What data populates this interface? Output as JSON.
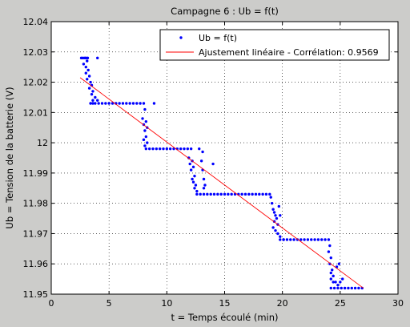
{
  "window": {
    "background": "#ccccca"
  },
  "chart_data": {
    "type": "scatter",
    "title": "Campagne 6 : Ub = f(t)",
    "xlabel": "t = Temps écoulé (min)",
    "ylabel": "Ub = Tension de la batterie (V)",
    "xlim": [
      0,
      30
    ],
    "ylim": [
      11.95,
      12.04
    ],
    "xticks": [
      0,
      5,
      10,
      15,
      20,
      25,
      30
    ],
    "xtick_labels": [
      "0",
      "5",
      "10",
      "15",
      "20",
      "25",
      "30"
    ],
    "yticks": [
      11.95,
      11.96,
      11.97,
      11.98,
      11.99,
      12.0,
      12.01,
      12.02,
      12.03,
      12.04
    ],
    "ytick_labels": [
      "11.95",
      "11.96",
      "11.97",
      "11.98",
      "11.99",
      "12",
      "12.01",
      "12.02",
      "12.03",
      "12.04"
    ],
    "grid": true,
    "legend": {
      "position": "top-right",
      "entries": [
        "Ub = f(t)",
        "Ajustement linéaire - Corrélation: 0.9569"
      ]
    },
    "series": [
      {
        "name": "Ub = f(t)",
        "kind": "scatter",
        "color": "#0000ff",
        "points": [
          [
            2.6,
            12.028
          ],
          [
            2.75,
            12.028
          ],
          [
            2.9,
            12.028
          ],
          [
            3.0,
            12.028
          ],
          [
            3.1,
            12.027
          ],
          [
            3.15,
            12.028
          ],
          [
            4.0,
            12.028
          ],
          [
            2.8,
            12.026
          ],
          [
            3.0,
            12.025
          ],
          [
            3.2,
            12.024
          ],
          [
            3.0,
            12.023
          ],
          [
            3.3,
            12.022
          ],
          [
            3.1,
            12.021
          ],
          [
            3.4,
            12.02
          ],
          [
            3.5,
            12.019
          ],
          [
            3.3,
            12.018
          ],
          [
            3.6,
            12.017
          ],
          [
            3.5,
            12.016
          ],
          [
            3.8,
            12.015
          ],
          [
            3.6,
            12.014
          ],
          [
            4.0,
            12.014
          ],
          [
            3.4,
            12.013
          ],
          [
            3.6,
            12.013
          ],
          [
            3.8,
            12.013
          ],
          [
            4.1,
            12.013
          ],
          [
            4.4,
            12.013
          ],
          [
            4.7,
            12.013
          ],
          [
            5.0,
            12.013
          ],
          [
            5.3,
            12.013
          ],
          [
            5.6,
            12.013
          ],
          [
            5.9,
            12.013
          ],
          [
            6.2,
            12.013
          ],
          [
            6.5,
            12.013
          ],
          [
            6.8,
            12.013
          ],
          [
            7.1,
            12.013
          ],
          [
            7.4,
            12.013
          ],
          [
            7.7,
            12.013
          ],
          [
            8.0,
            12.013
          ],
          [
            8.9,
            12.013
          ],
          [
            8.1,
            12.011
          ],
          [
            7.9,
            12.008
          ],
          [
            8.2,
            12.007
          ],
          [
            8.0,
            12.006
          ],
          [
            8.3,
            12.005
          ],
          [
            8.1,
            12.004
          ],
          [
            8.2,
            12.002
          ],
          [
            8.0,
            12.001
          ],
          [
            8.3,
            12.0
          ],
          [
            8.1,
            11.999
          ],
          [
            8.2,
            11.998
          ],
          [
            8.5,
            11.998
          ],
          [
            8.8,
            11.998
          ],
          [
            9.1,
            11.998
          ],
          [
            9.4,
            11.998
          ],
          [
            9.7,
            11.998
          ],
          [
            10.0,
            11.998
          ],
          [
            10.3,
            11.998
          ],
          [
            10.6,
            11.998
          ],
          [
            10.9,
            11.998
          ],
          [
            11.2,
            11.998
          ],
          [
            11.5,
            11.998
          ],
          [
            11.8,
            11.998
          ],
          [
            12.1,
            11.998
          ],
          [
            12.8,
            11.998
          ],
          [
            13.1,
            11.997
          ],
          [
            11.9,
            11.995
          ],
          [
            12.2,
            11.994
          ],
          [
            12.0,
            11.993
          ],
          [
            12.3,
            11.992
          ],
          [
            12.1,
            11.991
          ],
          [
            12.4,
            11.989
          ],
          [
            12.2,
            11.988
          ],
          [
            12.3,
            11.987
          ],
          [
            12.5,
            11.986
          ],
          [
            12.4,
            11.985
          ],
          [
            12.6,
            11.984
          ],
          [
            13.0,
            11.994
          ],
          [
            13.1,
            11.991
          ],
          [
            13.2,
            11.988
          ],
          [
            13.3,
            11.986
          ],
          [
            13.2,
            11.985
          ],
          [
            14.0,
            11.993
          ],
          [
            12.6,
            11.983
          ],
          [
            12.9,
            11.983
          ],
          [
            13.2,
            11.983
          ],
          [
            13.5,
            11.983
          ],
          [
            13.8,
            11.983
          ],
          [
            14.1,
            11.983
          ],
          [
            14.4,
            11.983
          ],
          [
            14.7,
            11.983
          ],
          [
            15.0,
            11.983
          ],
          [
            15.3,
            11.983
          ],
          [
            15.6,
            11.983
          ],
          [
            15.9,
            11.983
          ],
          [
            16.2,
            11.983
          ],
          [
            16.5,
            11.983
          ],
          [
            16.8,
            11.983
          ],
          [
            17.1,
            11.983
          ],
          [
            17.4,
            11.983
          ],
          [
            17.7,
            11.983
          ],
          [
            18.0,
            11.983
          ],
          [
            18.3,
            11.983
          ],
          [
            18.6,
            11.983
          ],
          [
            18.9,
            11.983
          ],
          [
            19.0,
            11.982
          ],
          [
            19.1,
            11.98
          ],
          [
            19.2,
            11.978
          ],
          [
            19.3,
            11.977
          ],
          [
            19.4,
            11.976
          ],
          [
            19.5,
            11.975
          ],
          [
            19.3,
            11.974
          ],
          [
            19.6,
            11.973
          ],
          [
            19.2,
            11.972
          ],
          [
            19.4,
            11.971
          ],
          [
            19.6,
            11.97
          ],
          [
            19.8,
            11.969
          ],
          [
            20.1,
            11.968
          ],
          [
            19.7,
            11.979
          ],
          [
            19.8,
            11.976
          ],
          [
            19.8,
            11.968
          ],
          [
            20.1,
            11.968
          ],
          [
            20.4,
            11.968
          ],
          [
            20.7,
            11.968
          ],
          [
            21.0,
            11.968
          ],
          [
            21.3,
            11.968
          ],
          [
            21.6,
            11.968
          ],
          [
            21.9,
            11.968
          ],
          [
            22.2,
            11.968
          ],
          [
            22.5,
            11.968
          ],
          [
            22.8,
            11.968
          ],
          [
            23.1,
            11.968
          ],
          [
            23.4,
            11.968
          ],
          [
            23.7,
            11.968
          ],
          [
            24.0,
            11.968
          ],
          [
            24.1,
            11.966
          ],
          [
            24.0,
            11.964
          ],
          [
            24.2,
            11.962
          ],
          [
            24.1,
            11.96
          ],
          [
            24.3,
            11.958
          ],
          [
            24.2,
            11.957
          ],
          [
            24.4,
            11.956
          ],
          [
            24.2,
            11.955
          ],
          [
            24.4,
            11.954
          ],
          [
            24.6,
            11.954
          ],
          [
            24.8,
            11.953
          ],
          [
            25.0,
            11.954
          ],
          [
            24.9,
            11.96
          ],
          [
            24.7,
            11.959
          ],
          [
            25.2,
            11.955
          ],
          [
            24.2,
            11.952
          ],
          [
            24.5,
            11.952
          ],
          [
            24.8,
            11.952
          ],
          [
            25.1,
            11.952
          ],
          [
            25.4,
            11.952
          ],
          [
            25.7,
            11.952
          ],
          [
            26.0,
            11.952
          ],
          [
            26.3,
            11.952
          ],
          [
            26.6,
            11.952
          ],
          [
            26.9,
            11.952
          ]
        ]
      },
      {
        "name": "Ajustement linéaire - Corrélation: 0.9569",
        "kind": "line",
        "color": "#ff0000",
        "x": [
          2.5,
          27.0
        ],
        "y": [
          12.0215,
          11.952
        ]
      }
    ]
  }
}
